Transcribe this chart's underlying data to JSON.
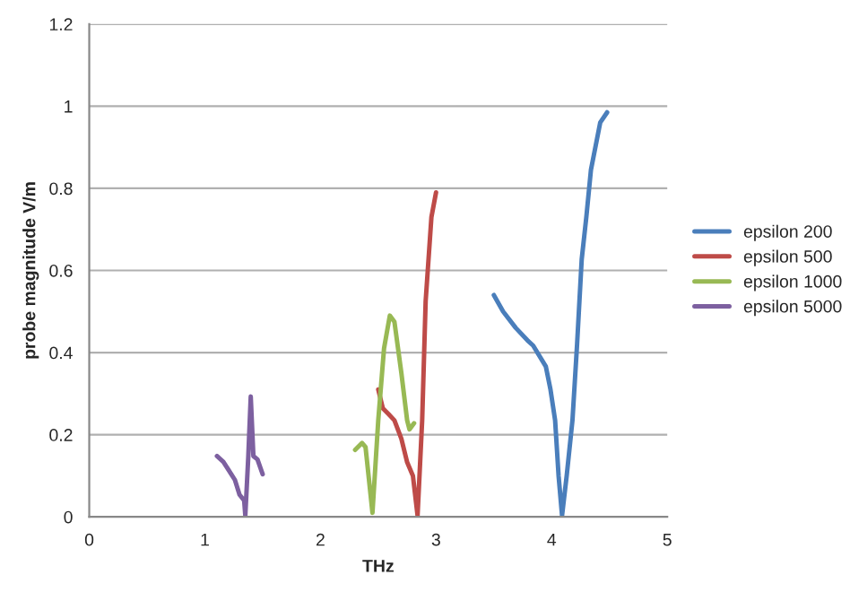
{
  "chart_data": {
    "type": "line",
    "xlabel": "THz",
    "ylabel": "probe magnitude V/m",
    "xlim": [
      0,
      5
    ],
    "xticks": [
      0,
      1,
      2,
      3,
      4,
      5
    ],
    "ylim": [
      0,
      1.2
    ],
    "yticks": [
      0,
      0.2,
      0.4,
      0.6,
      0.8,
      1,
      1.2
    ],
    "grid": "y",
    "legend": "right",
    "marker": "none",
    "line_style": "solid",
    "series": [
      {
        "name": "epsilon 200",
        "color": "#4a7ebb",
        "x": [
          3.5,
          3.58,
          3.69,
          3.79,
          3.84,
          3.95,
          3.99,
          4.03,
          4.06,
          4.09,
          4.13,
          4.18,
          4.22,
          4.26,
          4.3,
          4.34,
          4.42,
          4.48
        ],
        "values": [
          0.54,
          0.5,
          0.46,
          0.43,
          0.417,
          0.366,
          0.31,
          0.235,
          0.1,
          0.003,
          0.1,
          0.235,
          0.42,
          0.627,
          0.73,
          0.845,
          0.96,
          0.985
        ]
      },
      {
        "name": "epsilon 500",
        "color": "#be4b48",
        "x": [
          2.5,
          2.54,
          2.59,
          2.64,
          2.7,
          2.75,
          2.8,
          2.84,
          2.88,
          2.91,
          2.96,
          3.0
        ],
        "values": [
          0.31,
          0.264,
          0.25,
          0.235,
          0.19,
          0.133,
          0.1,
          0.003,
          0.235,
          0.525,
          0.73,
          0.79
        ]
      },
      {
        "name": "epsilon 1000",
        "color": "#98b954",
        "x": [
          2.3,
          2.36,
          2.39,
          2.45,
          2.5,
          2.55,
          2.6,
          2.64,
          2.7,
          2.75,
          2.77,
          2.81
        ],
        "values": [
          0.163,
          0.18,
          0.17,
          0.01,
          0.235,
          0.41,
          0.49,
          0.475,
          0.35,
          0.235,
          0.213,
          0.228
        ]
      },
      {
        "name": "epsilon 5000",
        "color": "#7d60a0",
        "x": [
          1.105,
          1.16,
          1.21,
          1.26,
          1.3,
          1.34,
          1.35,
          1.376,
          1.397,
          1.42,
          1.455,
          1.5
        ],
        "values": [
          0.148,
          0.134,
          0.112,
          0.09,
          0.054,
          0.04,
          0.003,
          0.148,
          0.293,
          0.148,
          0.14,
          0.104
        ]
      }
    ]
  }
}
